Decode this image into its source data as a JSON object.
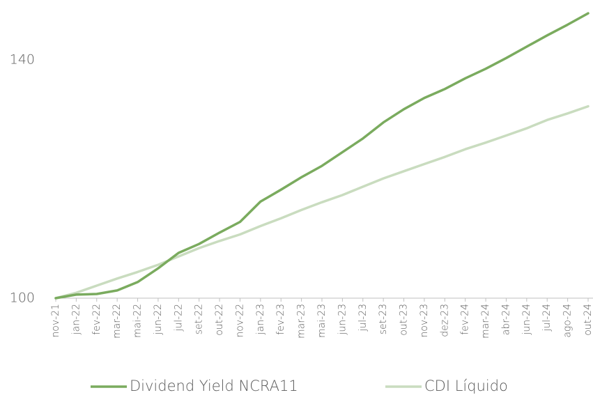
{
  "chart_data": {
    "type": "line",
    "categories": [
      "nov-21",
      "jan-22",
      "fev-22",
      "mar-22",
      "mai-22",
      "jun-22",
      "jul-22",
      "set-22",
      "out-22",
      "nov-22",
      "jan-23",
      "fev-23",
      "mar-23",
      "mai-23",
      "jun-23",
      "jul-23",
      "set-23",
      "out-23",
      "nov-23",
      "dez-23",
      "fev-24",
      "mar-24",
      "abr-24",
      "jun-24",
      "jul-24",
      "ago-24",
      "out-24"
    ],
    "series": [
      {
        "name": "Dividend Yield NCRA11",
        "color": "#7aab5e",
        "values": [
          100,
          100.6,
          100.7,
          101.3,
          102.7,
          105.0,
          107.6,
          109.1,
          111.0,
          112.8,
          116.2,
          118.2,
          120.3,
          122.2,
          124.5,
          126.8,
          129.5,
          131.7,
          133.6,
          135.1,
          136.9,
          138.5,
          140.3,
          142.2,
          144.1,
          145.9,
          147.8
        ]
      },
      {
        "name": "CDI Líquido",
        "color": "#c9dcbf",
        "values": [
          100,
          100.9,
          102.1,
          103.3,
          104.4,
          105.6,
          107.0,
          108.4,
          109.6,
          110.7,
          112.1,
          113.4,
          114.8,
          116.1,
          117.3,
          118.7,
          120.1,
          121.3,
          122.5,
          123.7,
          125.0,
          126.1,
          127.3,
          128.5,
          129.9,
          131.0,
          132.2
        ]
      }
    ],
    "ylim": [
      100,
      150
    ],
    "yticks": [
      100,
      140
    ],
    "legend": "bottom"
  }
}
